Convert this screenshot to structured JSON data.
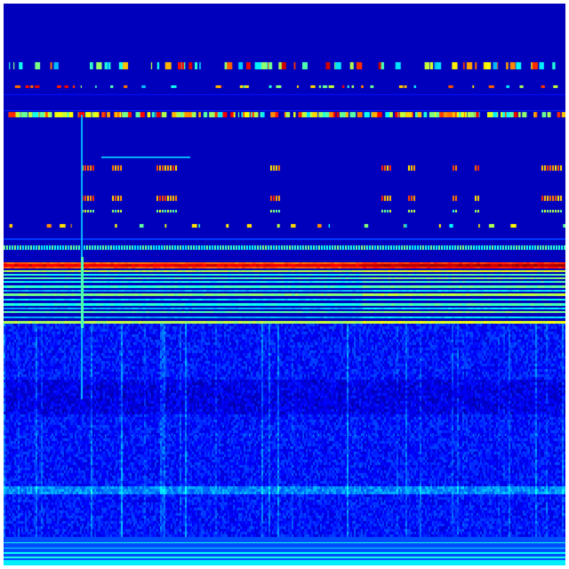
{
  "image": {
    "kind": "spectrogram",
    "colormap": "jet",
    "colors": {
      "background": "#ffffff",
      "low": "#00008c",
      "mid": "#0000ff",
      "cyan": "#00e0ff",
      "green": "#7fff7f",
      "yellow": "#ffff00",
      "red": "#ff2000"
    }
  }
}
